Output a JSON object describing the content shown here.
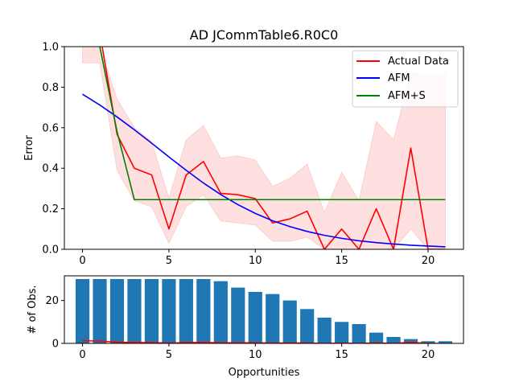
{
  "chart_data": [
    {
      "type": "line",
      "title": "AD JCommTable6.R0C0",
      "xlabel": "",
      "ylabel": "Error",
      "xlim": [
        -1.05,
        22.05
      ],
      "ylim": [
        0,
        1.0
      ],
      "xticks": [
        0,
        5,
        10,
        15,
        20
      ],
      "yticks": [
        0.0,
        0.2,
        0.4,
        0.6,
        0.8,
        1.0
      ],
      "xtick_labels": [
        "0",
        "5",
        "10",
        "15",
        "20"
      ],
      "ytick_labels": [
        "0.0",
        "0.2",
        "0.4",
        "0.6",
        "0.8",
        "1.0"
      ],
      "legend_position": "top-right",
      "grid": false,
      "x": [
        0,
        1,
        2,
        3,
        4,
        5,
        6,
        7,
        8,
        9,
        10,
        11,
        12,
        13,
        14,
        15,
        16,
        17,
        18,
        19,
        20,
        21
      ],
      "band": {
        "color": "#ffe0e0",
        "upper": [
          1.0,
          1.0,
          0.74,
          0.6,
          0.53,
          0.25,
          0.54,
          0.61,
          0.45,
          0.46,
          0.44,
          0.31,
          0.35,
          0.42,
          0.18,
          0.38,
          0.24,
          0.63,
          0.54,
          0.87,
          0.86,
          0.86
        ],
        "lower": [
          0.92,
          0.92,
          0.39,
          0.24,
          0.21,
          0.03,
          0.21,
          0.27,
          0.14,
          0.13,
          0.12,
          0.04,
          0.04,
          0.06,
          0.0,
          0.0,
          0.0,
          0.0,
          0.0,
          0.1,
          0.0,
          0.0
        ]
      },
      "series": [
        {
          "name": "Actual Data",
          "color": "#ff0000",
          "values": [
            1.27,
            1.07,
            0.567,
            0.4,
            0.367,
            0.1,
            0.367,
            0.433,
            0.276,
            0.269,
            0.25,
            0.13,
            0.15,
            0.188,
            0.0,
            0.1,
            0.0,
            0.2,
            0.0,
            0.5,
            0.0,
            0.0
          ]
        },
        {
          "name": "AFM",
          "color": "#0000ff",
          "values": [
            0.765,
            0.712,
            0.653,
            0.59,
            0.524,
            0.456,
            0.39,
            0.327,
            0.27,
            0.22,
            0.177,
            0.141,
            0.112,
            0.088,
            0.069,
            0.054,
            0.042,
            0.033,
            0.026,
            0.02,
            0.016,
            0.012
          ]
        },
        {
          "name": "AFM+S",
          "color": "#008000",
          "values": [
            1.25,
            1.0,
            0.58,
            0.245,
            0.245,
            0.245,
            0.245,
            0.245,
            0.245,
            0.245,
            0.245,
            0.245,
            0.245,
            0.245,
            0.245,
            0.245,
            0.245,
            0.245,
            0.245,
            0.245,
            0.245,
            0.245
          ]
        }
      ]
    },
    {
      "type": "bar",
      "title": "",
      "xlabel": "Opportunities",
      "ylabel": "# of Obs.",
      "xlim": [
        -1.05,
        22.05
      ],
      "ylim": [
        0,
        31.5
      ],
      "xticks": [
        0,
        5,
        10,
        15,
        20
      ],
      "yticks": [
        0,
        20
      ],
      "xtick_labels": [
        "0",
        "5",
        "10",
        "15",
        "20"
      ],
      "ytick_labels": [
        "0",
        "20"
      ],
      "grid": false,
      "bar_color": "#1f77b4",
      "x": [
        0,
        1,
        2,
        3,
        4,
        5,
        6,
        7,
        8,
        9,
        10,
        11,
        12,
        13,
        14,
        15,
        16,
        17,
        18,
        19,
        20,
        21
      ],
      "values": [
        30,
        30,
        30,
        30,
        30,
        30,
        30,
        30,
        29,
        26,
        24,
        23,
        20,
        16,
        12,
        10,
        9,
        5,
        3,
        2,
        1,
        1
      ],
      "overlay_line": {
        "color": "#ff0000",
        "values": [
          1.27,
          1.07,
          0.567,
          0.4,
          0.367,
          0.1,
          0.367,
          0.433,
          0.276,
          0.269,
          0.25,
          0.13,
          0.15,
          0.188,
          0.0,
          0.1,
          0.0,
          0.2,
          0.0,
          0.5,
          0.0,
          0.0
        ]
      }
    }
  ]
}
